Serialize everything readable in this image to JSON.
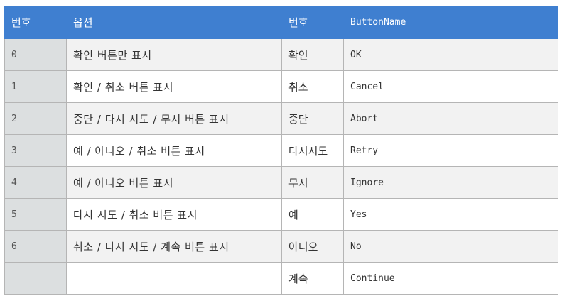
{
  "table": {
    "headers": [
      "번호",
      "옵션",
      "번호",
      "ButtonName"
    ],
    "rows": [
      [
        "0",
        "확인 버튼만 표시",
        "확인",
        "OK"
      ],
      [
        "1",
        "확인 / 취소 버튼 표시",
        "취소",
        "Cancel"
      ],
      [
        "2",
        "중단 / 다시 시도 / 무시 버튼 표시",
        "중단",
        "Abort"
      ],
      [
        "3",
        "예 / 아니오 / 취소 버튼 표시",
        "다시시도",
        "Retry"
      ],
      [
        "4",
        "예 / 아니오 버튼 표시",
        "무시",
        "Ignore"
      ],
      [
        "5",
        "다시 시도 / 취소 버튼 표시",
        "예",
        "Yes"
      ],
      [
        "6",
        "취소 / 다시 시도 / 계속 버튼 표시",
        "아니오",
        "No"
      ],
      [
        "",
        "",
        "계속",
        "Continue"
      ]
    ]
  },
  "colors": {
    "header_bg": "#3f7fd0",
    "number_cell_bg": "#dcdfe0",
    "stripe_bg": "#f2f2f2",
    "border": "#b5b5b5"
  }
}
